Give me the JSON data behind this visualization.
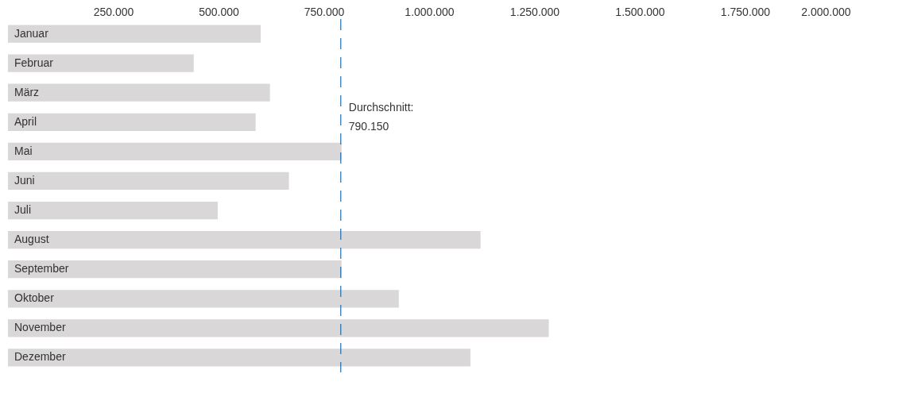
{
  "chart_data": {
    "type": "bar",
    "orientation": "horizontal",
    "categories": [
      "Januar",
      "Februar",
      "März",
      "April",
      "Mai",
      "Juni",
      "Juli",
      "August",
      "September",
      "Oktober",
      "November",
      "Dezember"
    ],
    "values": [
      600000,
      441000,
      622000,
      588000,
      792000,
      667000,
      498000,
      1122000,
      792000,
      928000,
      1284000,
      1098000
    ],
    "color": "#d9d7d8",
    "xlim": [
      0,
      2000000
    ],
    "xticks": [
      {
        "value": 250000,
        "label": "250.000"
      },
      {
        "value": 500000,
        "label": "500.000"
      },
      {
        "value": 750000,
        "label": "750.000"
      },
      {
        "value": 1000000,
        "label": "1.000.000"
      },
      {
        "value": 1250000,
        "label": "1.250.000"
      },
      {
        "value": 1500000,
        "label": "1.500.000"
      },
      {
        "value": 1750000,
        "label": "1.750.000"
      },
      {
        "value": 2000000,
        "label": "2.000.000"
      }
    ],
    "ref_lines": [
      {
        "axis": "x",
        "value": 790150,
        "label": "Durchschnitt: 790.150",
        "color": "#1f6fad",
        "line_style": "dashed"
      }
    ],
    "grid": false
  }
}
